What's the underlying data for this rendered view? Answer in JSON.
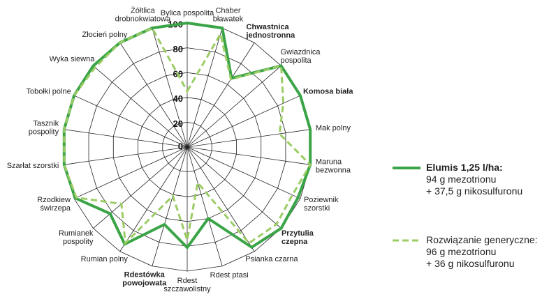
{
  "chart_data": {
    "type": "radar",
    "categories": [
      "Bylica pospolita",
      "Chaber\nbławatek",
      "Chwastnica\njednostronna",
      "Gwiazdnica\npospolita",
      "Komosa biała",
      "Mak polny",
      "Maruna\nbezwonna",
      "Poziewnik\nszorstki",
      "Przytulia\nczepna",
      "Psianka czarna",
      "Rdest ptasi",
      "Rdest\nszczawolistny",
      "Rdestówka\npowojowata",
      "Rumian polny",
      "Rumianek\npospolity",
      "Rzodkiew\nświrzepa",
      "Szarłat szorstki",
      "Tasznik\npospolity",
      "Tobołki polne",
      "Wyka siewna",
      "Złocień polny",
      "Żółtlica\ndrobnokwiatowa"
    ],
    "series": [
      {
        "name": "Elumis 1,25 l/ha:\n94 g mezotrionu\n+ 37,5 g nikosulfuronu",
        "color": "#3aa447",
        "line_style": "solid",
        "values": [
          100,
          100,
          66,
          100,
          100,
          100,
          100,
          98,
          100,
          96,
          60,
          81,
          65,
          93,
          82,
          99,
          100,
          100,
          100,
          100,
          100,
          100
        ]
      },
      {
        "name": "Rozwiązanie generyczne:\n96 g mezotrionu\n+ 36 g nikosulfuronu",
        "color": "#9ccc65",
        "line_style": "dashed",
        "values": [
          45,
          95,
          65,
          100,
          85,
          75,
          100,
          93,
          95,
          92,
          30,
          75,
          41,
          92,
          70,
          98,
          100,
          100,
          100,
          98,
          100,
          100
        ]
      }
    ],
    "ylim": [
      0,
      100
    ],
    "yticks": [
      0,
      20,
      40,
      60,
      80,
      100
    ],
    "grid": true
  }
}
